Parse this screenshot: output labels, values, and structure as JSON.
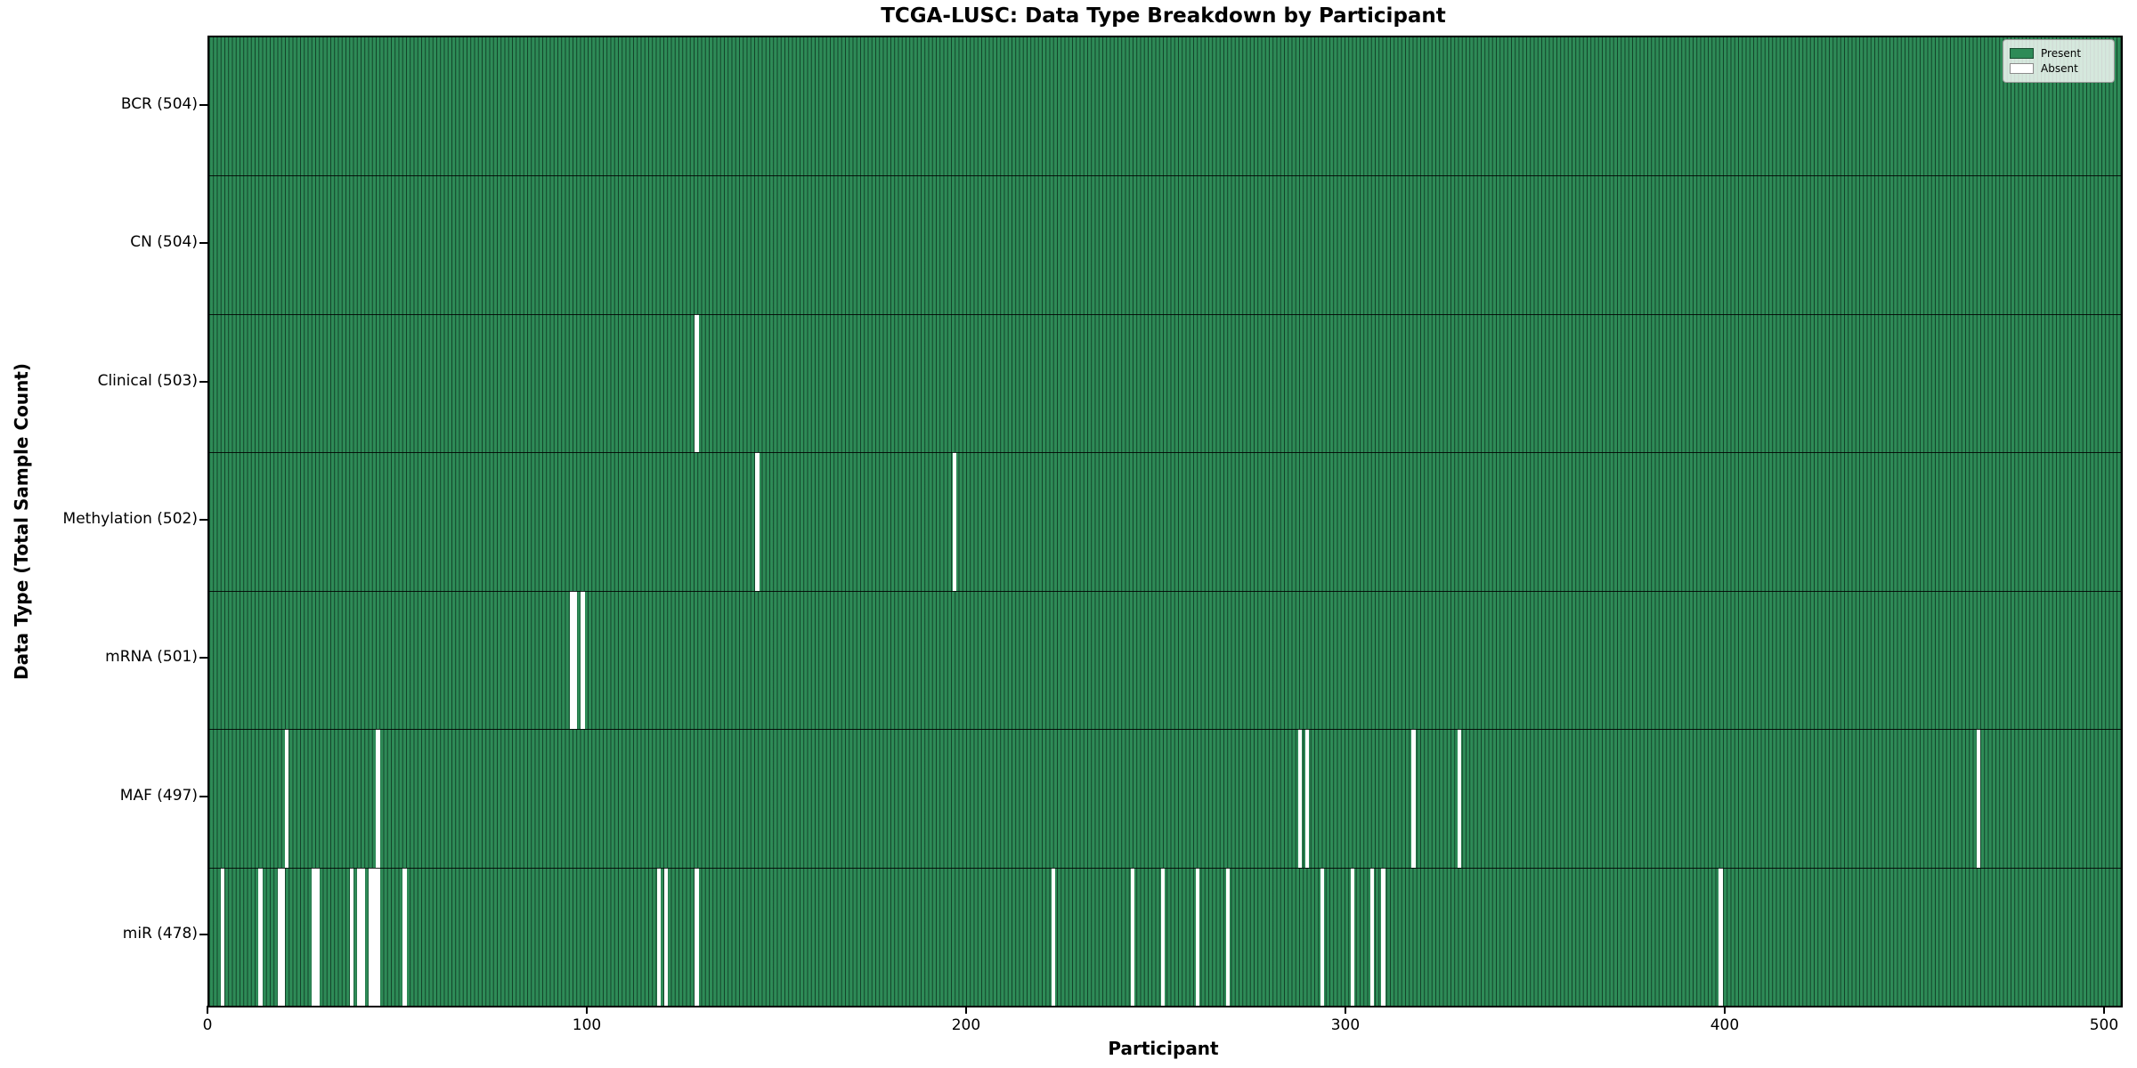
{
  "title": "TCGA-LUSC: Data Type Breakdown by Participant",
  "axes": {
    "x_label": "Participant",
    "y_label": "Data Type (Total Sample Count)",
    "x_ticks": [
      0,
      100,
      200,
      300,
      400,
      500
    ]
  },
  "legend": {
    "items": [
      {
        "label": "Present",
        "color": "#2e8b57"
      },
      {
        "label": "Absent",
        "color": "#ffffff"
      }
    ]
  },
  "colors": {
    "present": "#2e8b57",
    "absent": "#ffffff",
    "bar_edge": "#0b2a19"
  },
  "chart_data": {
    "type": "heatmap",
    "title": "TCGA-LUSC: Data Type Breakdown by Participant",
    "xlabel": "Participant",
    "ylabel": "Data Type (Total Sample Count)",
    "xlim": [
      0,
      504
    ],
    "total_participants": 504,
    "legend_position": "upper right",
    "rows": [
      {
        "label": "BCR (504)",
        "data_type": "BCR",
        "count": 504,
        "absent_participants": []
      },
      {
        "label": "CN (504)",
        "data_type": "CN",
        "count": 504,
        "absent_participants": []
      },
      {
        "label": "Clinical (503)",
        "data_type": "Clinical",
        "count": 503,
        "absent_participants": [
          128
        ]
      },
      {
        "label": "Methylation (502)",
        "data_type": "Methylation",
        "count": 502,
        "absent_participants": [
          144,
          196
        ]
      },
      {
        "label": "mRNA (501)",
        "data_type": "mRNA",
        "count": 501,
        "absent_participants": [
          95,
          96,
          98
        ]
      },
      {
        "label": "MAF (497)",
        "data_type": "MAF",
        "count": 497,
        "absent_participants": [
          20,
          44,
          287,
          289,
          317,
          329,
          466
        ]
      },
      {
        "label": "miR (478)",
        "data_type": "miR",
        "count": 478,
        "absent_participants": [
          3,
          13,
          18,
          19,
          27,
          28,
          37,
          39,
          40,
          42,
          43,
          44,
          51,
          118,
          120,
          128,
          222,
          243,
          251,
          260,
          268,
          293,
          301,
          306,
          309,
          398
        ]
      }
    ]
  }
}
